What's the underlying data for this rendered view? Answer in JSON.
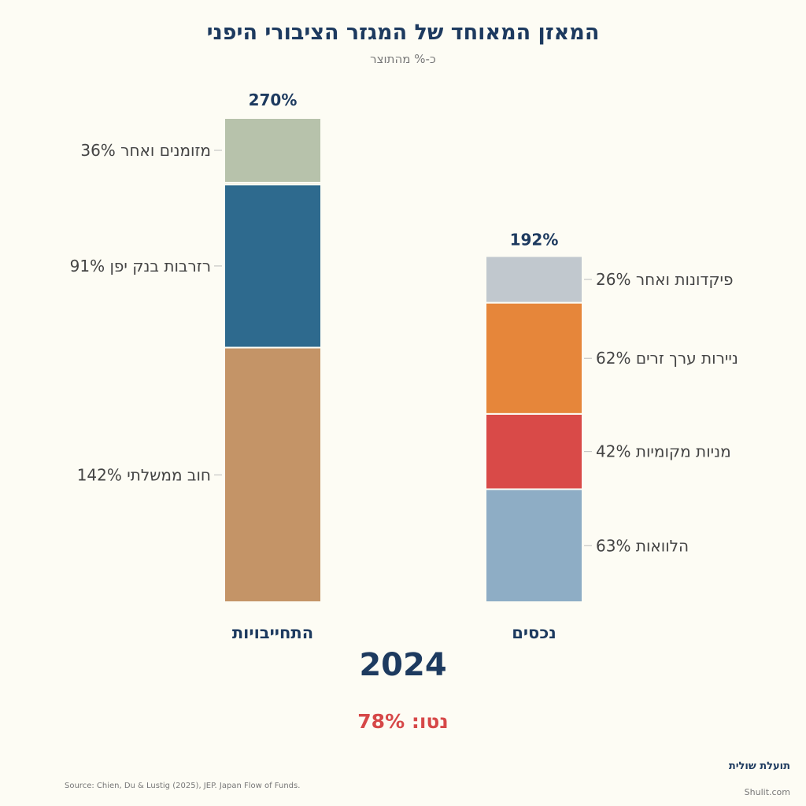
{
  "title": "המאזן המאוחד של המגזר הציבורי היפני",
  "subtitle": "כ-% מהתוצר",
  "year": "2024",
  "net_label": "נטו: 78%",
  "source": "Source: Chien, Du & Lustig (2025), JEP. Japan Flow of Funds.",
  "brand": "תועלת שולית",
  "site": "Shulit.com",
  "chart_data": {
    "type": "stacked-bar",
    "categories": [
      "התחייבויות",
      "נכסים"
    ],
    "totals": [
      "270%",
      "192%"
    ],
    "ylim": [
      0,
      270
    ],
    "grid": false,
    "bars": [
      {
        "category": "התחייבויות",
        "total": 270,
        "segments": [
          {
            "name": "חוב ממשלתי",
            "value": 142,
            "label": "142%",
            "color": "#c49467"
          },
          {
            "name": "רזרבות בנק יפן",
            "value": 91,
            "label": "91%",
            "color": "#2e6a8e"
          },
          {
            "name": "",
            "value": 1,
            "label": "",
            "color": "#d9c7a8"
          },
          {
            "name": "מזומנים ואחר",
            "value": 36,
            "label": "36%",
            "color": "#b7c2ab"
          }
        ]
      },
      {
        "category": "נכסים",
        "total": 192,
        "segments": [
          {
            "name": "הלוואות",
            "value": 63,
            "label": "63%",
            "color": "#8eadc5"
          },
          {
            "name": "מניות מקומיות",
            "value": 42,
            "label": "42%",
            "color": "#d94a48"
          },
          {
            "name": "ניירות ערך זרים",
            "value": 62,
            "label": "62%",
            "color": "#e6863a"
          },
          {
            "name": "פיקדונות ואחר",
            "value": 26,
            "label": "26%",
            "color": "#c1c8ce"
          }
        ]
      }
    ]
  }
}
